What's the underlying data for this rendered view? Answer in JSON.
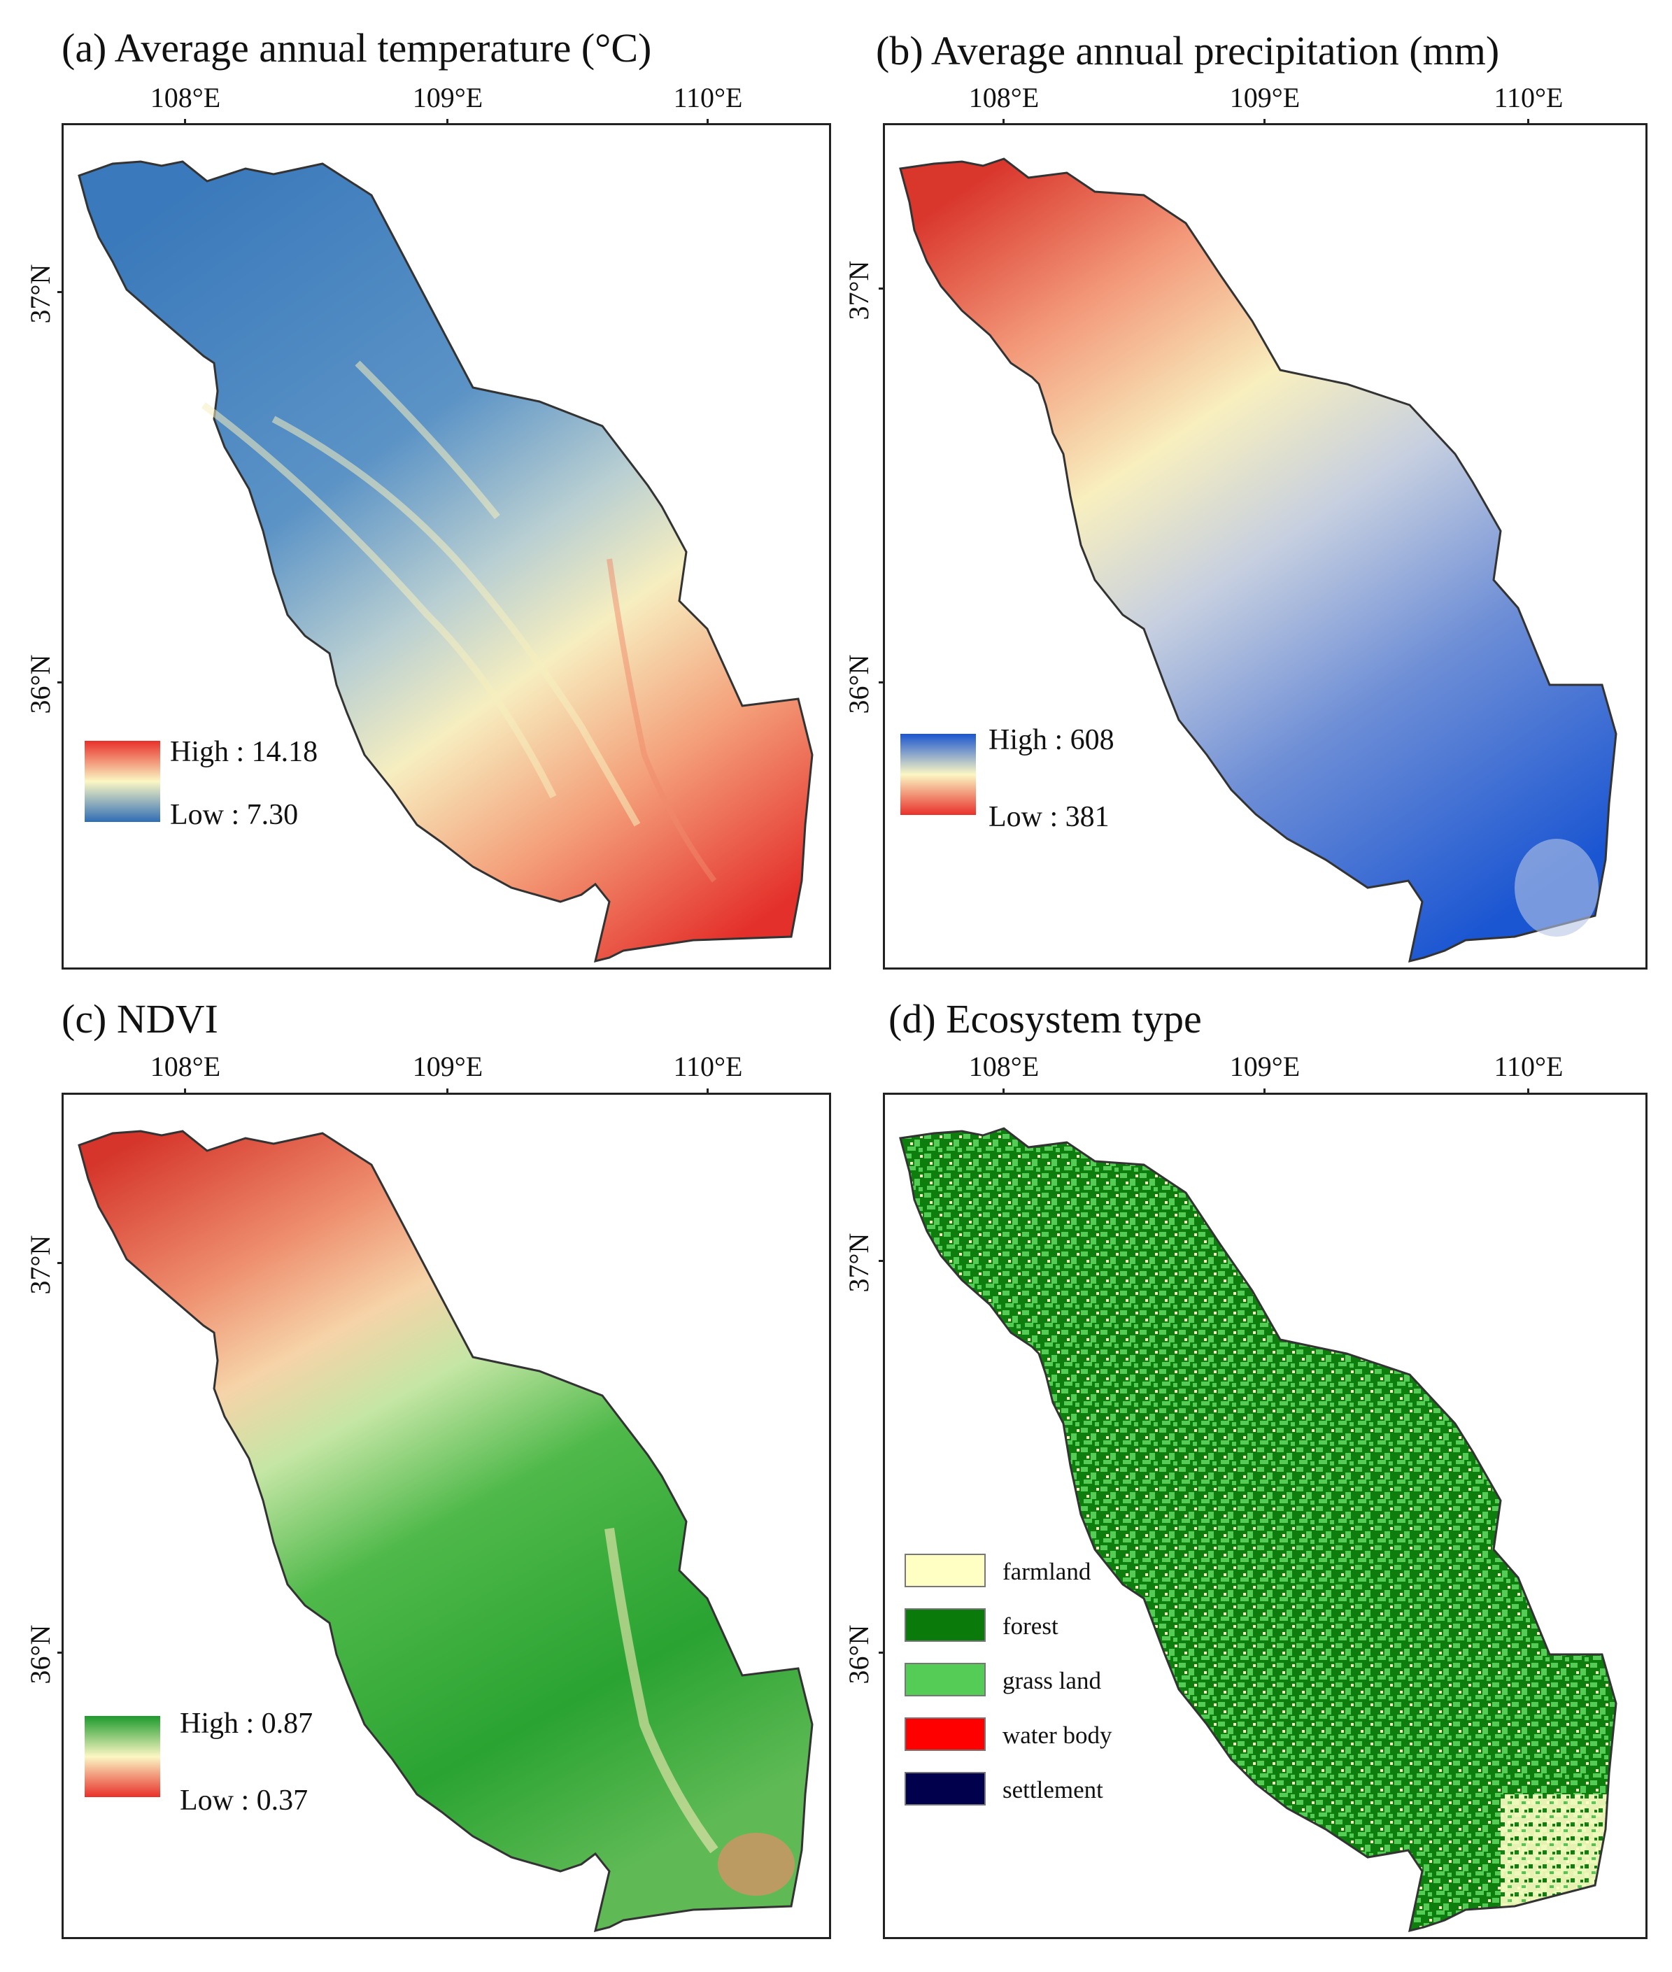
{
  "panels": {
    "a": {
      "title": "(a) Average annual temperature (°C)",
      "legend_high": "High : 14.18",
      "legend_low": "Low : 7.30",
      "ramp": [
        "#2f6db4",
        "#fbf7c4",
        "#e8302a"
      ]
    },
    "b": {
      "title": "(b) Average annual precipitation (mm)",
      "legend_high": "High : 608",
      "legend_low": "Low : 381",
      "ramp": [
        "#1a55d1",
        "#fbf7c4",
        "#e8302a"
      ]
    },
    "c": {
      "title": "(c) NDVI",
      "legend_high": "High : 0.87",
      "legend_low": "Low : 0.37",
      "ramp": [
        "#1d9a2c",
        "#fbf7c4",
        "#e8302a"
      ]
    },
    "d": {
      "title": "(d) Ecosystem type",
      "legend": [
        {
          "label": "farmland",
          "color": "#ffffc4"
        },
        {
          "label": "forest",
          "color": "#0a7a0a"
        },
        {
          "label": "grass land",
          "color": "#55cc55"
        },
        {
          "label": "water body",
          "color": "#ff0000"
        },
        {
          "label": "settlement",
          "color": "#00004d"
        }
      ]
    }
  },
  "axes": {
    "lon_labels": [
      "108°E",
      "109°E",
      "110°E"
    ],
    "lat_labels": [
      "37°N",
      "36°N"
    ]
  }
}
